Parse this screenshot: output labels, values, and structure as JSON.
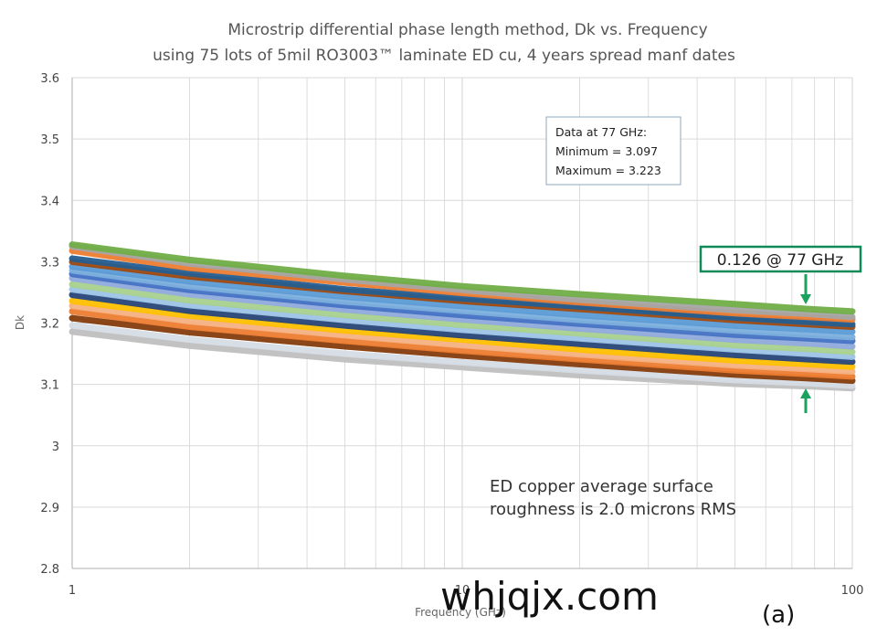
{
  "chart_data": {
    "type": "line",
    "title": "Microstrip differential  phase length method, Dk vs. Frequency",
    "subtitle": "using 75 lots of 5mil RO3003™ laminate ED cu, 4 years spread manf dates",
    "xlabel": "Frequency (GHz)",
    "ylabel": "Dk",
    "x_scale": "log",
    "xlim": [
      1,
      100
    ],
    "ylim": [
      2.8,
      3.6
    ],
    "x_ticks": [
      "1",
      "10",
      "100"
    ],
    "y_ticks": [
      "2.8",
      "2.9",
      "3",
      "3.1",
      "3.2",
      "3.3",
      "3.4",
      "3.5",
      "3.6"
    ],
    "grid": true,
    "legend": "none",
    "x": [
      1,
      2,
      5,
      10,
      20,
      50,
      77,
      100
    ],
    "series": [
      {
        "color": "#70ad47",
        "values": [
          3.328,
          3.303,
          3.277,
          3.26,
          3.247,
          3.231,
          3.223,
          3.219
        ]
      },
      {
        "color": "#a5a5a5",
        "values": [
          3.325,
          3.297,
          3.271,
          3.254,
          3.238,
          3.221,
          3.215,
          3.21
        ]
      },
      {
        "color": "#ed7d31",
        "values": [
          3.318,
          3.29,
          3.266,
          3.249,
          3.234,
          3.216,
          3.21,
          3.206
        ]
      },
      {
        "color": "#255e91",
        "values": [
          3.305,
          3.281,
          3.255,
          3.24,
          3.227,
          3.209,
          3.202,
          3.198
        ]
      },
      {
        "color": "#9e480e",
        "values": [
          3.3,
          3.276,
          3.252,
          3.236,
          3.223,
          3.205,
          3.198,
          3.194
        ]
      },
      {
        "color": "#5b9bd5",
        "values": [
          3.292,
          3.268,
          3.243,
          3.228,
          3.213,
          3.196,
          3.19,
          3.186
        ]
      },
      {
        "color": "#7cafdd",
        "values": [
          3.286,
          3.26,
          3.235,
          3.22,
          3.205,
          3.188,
          3.181,
          3.177
        ]
      },
      {
        "color": "#4472c4",
        "values": [
          3.28,
          3.254,
          3.229,
          3.213,
          3.199,
          3.181,
          3.175,
          3.171
        ]
      },
      {
        "color": "#8faadc",
        "values": [
          3.273,
          3.247,
          3.222,
          3.206,
          3.191,
          3.173,
          3.167,
          3.162
        ]
      },
      {
        "color": "#a9d18e",
        "values": [
          3.263,
          3.237,
          3.213,
          3.197,
          3.183,
          3.164,
          3.158,
          3.153
        ]
      },
      {
        "color": "#9dc3e6",
        "values": [
          3.255,
          3.229,
          3.205,
          3.189,
          3.175,
          3.157,
          3.15,
          3.145
        ]
      },
      {
        "color": "#264478",
        "values": [
          3.246,
          3.22,
          3.196,
          3.18,
          3.166,
          3.148,
          3.141,
          3.137
        ]
      },
      {
        "color": "#ffc000",
        "values": [
          3.236,
          3.212,
          3.188,
          3.173,
          3.157,
          3.139,
          3.133,
          3.129
        ]
      },
      {
        "color": "#f4b183",
        "values": [
          3.228,
          3.203,
          3.18,
          3.164,
          3.149,
          3.131,
          3.125,
          3.121
        ]
      },
      {
        "color": "#ed7d31",
        "values": [
          3.219,
          3.194,
          3.171,
          3.155,
          3.141,
          3.123,
          3.117,
          3.113
        ]
      },
      {
        "color": "#843c0c",
        "values": [
          3.208,
          3.185,
          3.162,
          3.147,
          3.133,
          3.116,
          3.11,
          3.106
        ]
      },
      {
        "color": "#d6dce5",
        "values": [
          3.196,
          3.173,
          3.15,
          3.136,
          3.123,
          3.107,
          3.102,
          3.098
        ]
      },
      {
        "color": "#bfbfbf",
        "values": [
          3.186,
          3.163,
          3.141,
          3.128,
          3.115,
          3.101,
          3.097,
          3.094
        ]
      }
    ],
    "annotations": {
      "info_box": [
        "Data at 77 GHz:",
        "Minimum  = 3.097",
        "Maximum  = 3.223"
      ],
      "callout": "0.126 @ 77 GHz",
      "note": [
        "ED copper average surface",
        "roughness is 2.0 microns RMS"
      ]
    }
  },
  "overlay": {
    "watermark": "whjqjx.com",
    "panel_label": "(a)"
  },
  "colors": {
    "background": "#ffffff",
    "grid": "#d9d9d9",
    "axis": "#bfbfbf",
    "callout_border": "#118a5a",
    "arrow": "#1aa25e",
    "info_border": "#8ea9c1"
  }
}
